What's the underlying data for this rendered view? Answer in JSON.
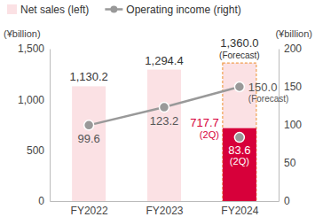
{
  "chart_data": {
    "type": "bar",
    "categories": [
      "FY2022",
      "FY2023",
      "FY2024"
    ],
    "y_label": "(¥billion)",
    "y2_label": "(¥billion)",
    "ylim": [
      0,
      1500
    ],
    "yticks": [
      0,
      500,
      {
        "value": 1000,
        "label": "1,000"
      },
      {
        "value": 1500,
        "label": "1,500"
      }
    ],
    "y2lim": [
      0,
      200
    ],
    "y2ticks": [
      0,
      50,
      100,
      150,
      200
    ],
    "legend": "top",
    "grid": false,
    "data_labels": true,
    "series": [
      {
        "name": "Net sales (left)",
        "type": "bar",
        "color": "#fbe1e4",
        "values": [
          1130.2,
          1294.4,
          1360.0
        ],
        "value_labels": [
          "1,130.2",
          "1,294.4",
          "1,360.0"
        ],
        "value_notes": [
          null,
          null,
          "(Forecast)"
        ]
      },
      {
        "name": "Operating income (right)",
        "type": "line",
        "axis": "y2",
        "color": "#999999",
        "marker": "circle",
        "values": [
          99.6,
          123.2,
          150.0
        ],
        "value_labels": [
          "99.6",
          "123.2",
          "150.0"
        ],
        "value_notes": [
          null,
          null,
          "(Forecast)"
        ]
      },
      {
        "name": "(2Q)",
        "type": "bar",
        "color": "#d7003a",
        "values": [
          null,
          null,
          717.7
        ],
        "value_labels": [
          null,
          null,
          "717.7"
        ]
      },
      {
        "name": "(2Q)",
        "type": "scatter",
        "axis": "y2",
        "color": "#999999",
        "marker": "circle",
        "values": [
          null,
          null,
          83.6
        ],
        "value_labels": [
          null,
          null,
          "83.6"
        ]
      }
    ]
  }
}
